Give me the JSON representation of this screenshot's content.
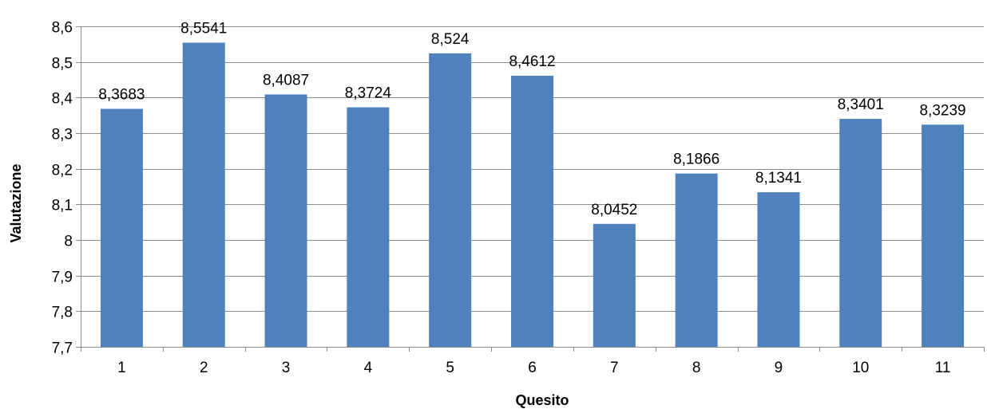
{
  "chart_data": {
    "type": "bar",
    "title": "",
    "xlabel": "Quesito",
    "ylabel": "Valutazione",
    "categories": [
      "1",
      "2",
      "3",
      "4",
      "5",
      "6",
      "7",
      "8",
      "9",
      "10",
      "11"
    ],
    "values": [
      8.3683,
      8.5541,
      8.4087,
      8.3724,
      8.524,
      8.4612,
      8.0452,
      8.1866,
      8.1341,
      8.3401,
      8.3239
    ],
    "value_labels": [
      "8,3683",
      "8,5541",
      "8,4087",
      "8,3724",
      "8,524",
      "8,4612",
      "8,0452",
      "8,1866",
      "8,1341",
      "8,3401",
      "8,3239"
    ],
    "ylim": [
      7.7,
      8.6
    ],
    "yticks": [
      7.7,
      7.8,
      7.9,
      8.0,
      8.1,
      8.2,
      8.3,
      8.4,
      8.5,
      8.6
    ],
    "ytick_labels": [
      "7,7",
      "7,8",
      "7,9",
      "8",
      "8,1",
      "8,2",
      "8,3",
      "8,4",
      "8,5",
      "8,6"
    ],
    "grid": true,
    "legend": "none",
    "bar_color": "#4f81bd"
  }
}
